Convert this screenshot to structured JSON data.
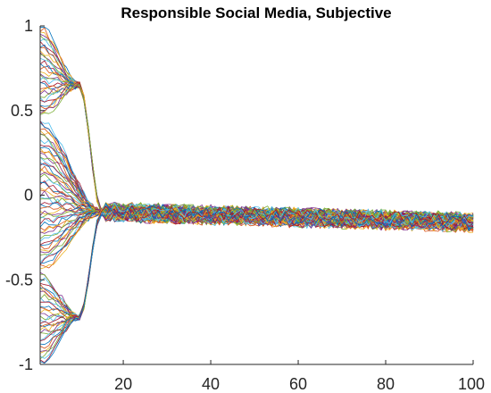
{
  "chart_data": {
    "type": "line",
    "title": "Responsible Social Media, Subjective",
    "xlabel": "",
    "ylabel": "",
    "xlim": [
      1,
      100
    ],
    "ylim": [
      -1,
      1
    ],
    "x_ticks": [
      20,
      40,
      60,
      80,
      100
    ],
    "y_ticks": [
      1,
      0.5,
      0,
      -0.5,
      -1
    ],
    "x_tick_labels": [
      "20",
      "40",
      "60",
      "80",
      "100"
    ],
    "y_tick_labels": [
      "1",
      "0.5",
      "0",
      "-0.5",
      "-1"
    ],
    "grid": false,
    "legend": "none",
    "series_count": 120,
    "steps": 100,
    "initial_values": "uniformly spread between -1 and 1",
    "convergence_step": 15,
    "cluster_high": {
      "until_step": 10,
      "value": 0.65
    },
    "cluster_low": {
      "until_step": 10,
      "value": -0.72
    },
    "consensus_start": -0.09,
    "consensus_end": -0.16,
    "noise_amplitude": 0.04,
    "colors": [
      "#0072BD",
      "#D95319",
      "#EDB120",
      "#7E2F8E",
      "#77AC30",
      "#4DBEEE",
      "#A2142F"
    ]
  }
}
